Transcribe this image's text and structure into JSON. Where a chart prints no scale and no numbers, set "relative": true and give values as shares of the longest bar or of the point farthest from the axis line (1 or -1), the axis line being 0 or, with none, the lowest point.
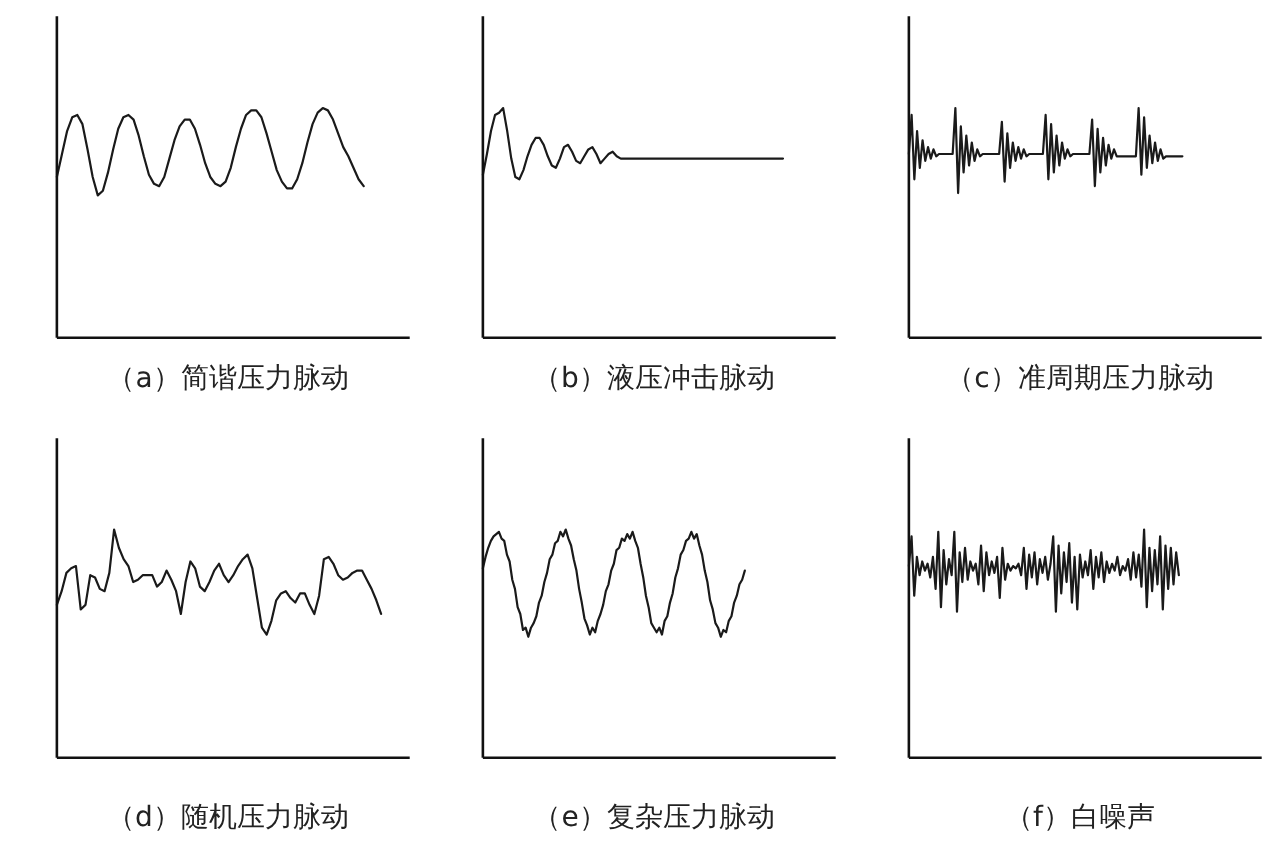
{
  "chart_data": [
    {
      "type": "line",
      "relative": true,
      "tick_labels": false,
      "title": "（a）简谐压力脉动",
      "categories": [
        null,
        null,
        null,
        null,
        null,
        null,
        null,
        null,
        null,
        null,
        null,
        null,
        null,
        null,
        null,
        null,
        null,
        null,
        null,
        null,
        null,
        null,
        null,
        null,
        null,
        null,
        null,
        null,
        null,
        null,
        null,
        null,
        null,
        null,
        null,
        null,
        null,
        null,
        null,
        null,
        null,
        null,
        null,
        null,
        null,
        null,
        null,
        null,
        null,
        null,
        null,
        null,
        null,
        null,
        null,
        null,
        null,
        null,
        null,
        null,
        null,
        null,
        null,
        null,
        null,
        null,
        null,
        null,
        null,
        null
      ],
      "series": [
        {
          "color": "#1a1a1a",
          "values": [
            0.7,
            0.8,
            0.9,
            0.96,
            0.97,
            0.93,
            0.82,
            0.7,
            0.62,
            0.64,
            0.72,
            0.82,
            0.91,
            0.96,
            0.97,
            0.95,
            0.88,
            0.79,
            0.71,
            0.67,
            0.66,
            0.7,
            0.78,
            0.86,
            0.92,
            0.95,
            0.95,
            0.91,
            0.84,
            0.76,
            0.7,
            0.67,
            0.66,
            0.68,
            0.74,
            0.83,
            0.91,
            0.97,
            0.99,
            0.99,
            0.96,
            0.89,
            0.81,
            0.73,
            0.68,
            0.65,
            0.65,
            0.69,
            0.76,
            0.85,
            0.93,
            0.98,
            1.0,
            0.99,
            0.95,
            0.89,
            0.83,
            0.79,
            0.74,
            0.69,
            0.66,
            null,
            null,
            null,
            null,
            null,
            null,
            null,
            null,
            null
          ]
        }
      ]
    },
    {
      "type": "line",
      "relative": true,
      "tick_labels": false,
      "title": "（b）液压冲击脉动",
      "categories": [
        null,
        null,
        null,
        null,
        null,
        null,
        null,
        null,
        null,
        null,
        null,
        null,
        null,
        null,
        null,
        null,
        null,
        null,
        null,
        null,
        null,
        null,
        null,
        null,
        null,
        null,
        null,
        null,
        null,
        null,
        null,
        null,
        null,
        null,
        null,
        null,
        null,
        null,
        null,
        null,
        null,
        null,
        null,
        null,
        null,
        null,
        null,
        null,
        null,
        null,
        null,
        null,
        null,
        null,
        null,
        null,
        null,
        null,
        null,
        null,
        null,
        null,
        null,
        null,
        null,
        null,
        null,
        null,
        null,
        null,
        null,
        null,
        null,
        null,
        null,
        null,
        null,
        null,
        null,
        null,
        null,
        null,
        null,
        null,
        null,
        null,
        null,
        null
      ],
      "series": [
        {
          "color": "#1a1a1a",
          "values": [
            0.71,
            0.8,
            0.9,
            0.97,
            0.98,
            1.0,
            0.9,
            0.78,
            0.7,
            0.69,
            0.73,
            0.79,
            0.84,
            0.87,
            0.87,
            0.84,
            0.79,
            0.75,
            0.74,
            0.78,
            0.83,
            0.84,
            0.81,
            0.77,
            0.76,
            0.79,
            0.82,
            0.83,
            0.8,
            0.76,
            0.78,
            0.8,
            0.81,
            0.79,
            0.78,
            0.78,
            0.78,
            0.78,
            0.78,
            0.78,
            0.78,
            0.78,
            0.78,
            0.78,
            0.78,
            0.78,
            0.78,
            0.78,
            0.78,
            0.78,
            0.78,
            0.78,
            0.78,
            0.78,
            0.78,
            0.78,
            0.78,
            0.78,
            0.78,
            0.78,
            0.78,
            0.78,
            0.78,
            0.78,
            0.78,
            0.78,
            0.78,
            0.78,
            0.78,
            0.78,
            0.78,
            0.78,
            0.78,
            0.78,
            0.78,
            null,
            null,
            null,
            null,
            null,
            null,
            null,
            null,
            null,
            null,
            null,
            null,
            null
          ]
        }
      ]
    },
    {
      "type": "line",
      "relative": true,
      "tick_labels": false,
      "title": "（c）准周期压力脉动",
      "categories": [
        null,
        null,
        null,
        null,
        null,
        null,
        null,
        null,
        null,
        null,
        null,
        null,
        null,
        null,
        null,
        null,
        null,
        null,
        null,
        null,
        null,
        null,
        null,
        null,
        null,
        null,
        null,
        null,
        null,
        null,
        null,
        null,
        null,
        null,
        null,
        null,
        null,
        null,
        null,
        null,
        null,
        null,
        null,
        null,
        null,
        null,
        null,
        null,
        null,
        null,
        null,
        null,
        null,
        null,
        null,
        null,
        null,
        null,
        null,
        null,
        null,
        null,
        null,
        null,
        null,
        null,
        null,
        null,
        null,
        null,
        null,
        null,
        null,
        null,
        null,
        null,
        null,
        null,
        null,
        null,
        null,
        null,
        null,
        null,
        null,
        null,
        null,
        null,
        null,
        null,
        null,
        null,
        null,
        null,
        null,
        null,
        null,
        null,
        null,
        null,
        null,
        null,
        null,
        null,
        null,
        null,
        null,
        null,
        null,
        null,
        null,
        null,
        null,
        null,
        null,
        null,
        null,
        null,
        null,
        null,
        null,
        null,
        null,
        null,
        null,
        null,
        null,
        null,
        null,
        null
      ],
      "series": [
        {
          "color": "#1a1a1a",
          "values": [
            0.8,
            0.97,
            0.69,
            0.9,
            0.74,
            0.86,
            0.77,
            0.83,
            0.78,
            0.82,
            0.79,
            0.8,
            0.8,
            0.8,
            0.8,
            0.8,
            0.8,
            1.0,
            0.63,
            0.92,
            0.72,
            0.88,
            0.75,
            0.85,
            0.77,
            0.82,
            0.79,
            0.8,
            0.8,
            0.8,
            0.8,
            0.8,
            0.8,
            0.8,
            0.94,
            0.68,
            0.89,
            0.74,
            0.85,
            0.77,
            0.83,
            0.78,
            0.82,
            0.79,
            0.8,
            0.8,
            0.8,
            0.8,
            0.8,
            0.8,
            0.97,
            0.69,
            0.93,
            0.72,
            0.88,
            0.75,
            0.85,
            0.78,
            0.82,
            0.79,
            0.8,
            0.8,
            0.8,
            0.8,
            0.8,
            0.8,
            0.8,
            0.95,
            0.66,
            0.91,
            0.72,
            0.87,
            0.75,
            0.84,
            0.78,
            0.82,
            0.79,
            0.79,
            0.79,
            0.79,
            0.79,
            0.79,
            0.79,
            0.79,
            1.0,
            0.71,
            0.96,
            0.74,
            0.88,
            0.76,
            0.85,
            0.77,
            0.82,
            0.78,
            0.79,
            0.79,
            0.79,
            0.79,
            0.79,
            0.79,
            0.79,
            null,
            null,
            null,
            null,
            null,
            null,
            null,
            null,
            null,
            null,
            null,
            null,
            null,
            null,
            null,
            null,
            null,
            null,
            null,
            null,
            null,
            null,
            null,
            null,
            null,
            null,
            null,
            null,
            null
          ]
        }
      ]
    },
    {
      "type": "line",
      "relative": true,
      "tick_labels": false,
      "title": "（d）随机压力脉动",
      "categories": [
        null,
        null,
        null,
        null,
        null,
        null,
        null,
        null,
        null,
        null,
        null,
        null,
        null,
        null,
        null,
        null,
        null,
        null,
        null,
        null,
        null,
        null,
        null,
        null,
        null,
        null,
        null,
        null,
        null,
        null,
        null,
        null,
        null,
        null,
        null,
        null,
        null,
        null,
        null,
        null,
        null,
        null,
        null,
        null,
        null,
        null,
        null,
        null,
        null,
        null,
        null,
        null,
        null,
        null,
        null,
        null,
        null,
        null,
        null,
        null,
        null,
        null,
        null,
        null,
        null,
        null,
        null,
        null,
        null,
        null,
        null,
        null,
        null,
        null,
        null
      ],
      "series": [
        {
          "color": "#1a1a1a",
          "values": [
            0.67,
            0.73,
            0.81,
            0.83,
            0.84,
            0.65,
            0.67,
            0.8,
            0.79,
            0.74,
            0.73,
            0.81,
            1.0,
            0.92,
            0.87,
            0.84,
            0.77,
            0.78,
            0.8,
            0.8,
            0.8,
            0.75,
            0.77,
            0.82,
            0.78,
            0.73,
            0.63,
            0.77,
            0.86,
            0.83,
            0.75,
            0.73,
            0.77,
            0.82,
            0.85,
            0.8,
            0.77,
            0.8,
            0.84,
            0.87,
            0.89,
            0.83,
            0.7,
            0.57,
            0.54,
            0.6,
            0.69,
            0.72,
            0.73,
            0.7,
            0.68,
            0.72,
            0.72,
            0.67,
            0.63,
            0.71,
            0.87,
            0.88,
            0.85,
            0.8,
            0.78,
            0.79,
            0.81,
            0.82,
            0.82,
            0.78,
            0.74,
            0.69,
            0.63,
            null,
            null,
            null,
            null,
            null,
            null
          ]
        }
      ]
    },
    {
      "type": "line",
      "relative": true,
      "tick_labels": false,
      "title": "（e）复杂压力脉动",
      "categories": [
        null,
        null,
        null,
        null,
        null,
        null,
        null,
        null,
        null,
        null,
        null,
        null,
        null,
        null,
        null,
        null,
        null,
        null,
        null,
        null,
        null,
        null,
        null,
        null,
        null,
        null,
        null,
        null,
        null,
        null,
        null,
        null,
        null,
        null,
        null,
        null,
        null,
        null,
        null,
        null,
        null,
        null,
        null,
        null,
        null,
        null,
        null,
        null,
        null,
        null,
        null,
        null,
        null,
        null,
        null,
        null,
        null,
        null,
        null,
        null,
        null,
        null,
        null,
        null,
        null,
        null,
        null,
        null,
        null,
        null,
        null,
        null,
        null,
        null,
        null,
        null,
        null,
        null,
        null,
        null,
        null,
        null,
        null,
        null,
        null,
        null,
        null,
        null,
        null,
        null,
        null,
        null,
        null,
        null,
        null,
        null,
        null,
        null,
        null,
        null,
        null,
        null,
        null,
        null,
        null,
        null,
        null,
        null,
        null,
        null,
        null,
        null,
        null,
        null,
        null,
        null,
        null,
        null,
        null,
        null,
        null,
        null,
        null,
        null,
        null,
        null,
        null,
        null,
        null,
        null,
        null,
        null,
        null
      ],
      "series": [
        {
          "color": "#1a1a1a",
          "values": [
            0.83,
            0.88,
            0.92,
            0.95,
            0.97,
            0.98,
            0.99,
            0.96,
            0.95,
            0.89,
            0.86,
            0.78,
            0.74,
            0.66,
            0.63,
            0.56,
            0.57,
            0.53,
            0.57,
            0.59,
            0.62,
            0.68,
            0.71,
            0.77,
            0.81,
            0.87,
            0.89,
            0.94,
            0.95,
            0.99,
            0.97,
            1.0,
            0.96,
            0.93,
            0.87,
            0.82,
            0.74,
            0.68,
            0.61,
            0.58,
            0.54,
            0.57,
            0.55,
            0.6,
            0.63,
            0.67,
            0.73,
            0.76,
            0.82,
            0.85,
            0.91,
            0.92,
            0.96,
            0.95,
            0.98,
            0.96,
            0.99,
            0.95,
            0.92,
            0.85,
            0.79,
            0.71,
            0.66,
            0.59,
            0.57,
            0.55,
            0.57,
            0.54,
            0.6,
            0.62,
            0.68,
            0.72,
            0.79,
            0.83,
            0.89,
            0.91,
            0.95,
            0.96,
            0.99,
            0.96,
            0.98,
            0.93,
            0.89,
            0.82,
            0.77,
            0.69,
            0.65,
            0.59,
            0.57,
            0.53,
            0.56,
            0.55,
            0.6,
            0.62,
            0.68,
            0.71,
            0.76,
            0.78,
            0.82,
            null,
            null,
            null,
            null,
            null,
            null,
            null,
            null,
            null,
            null,
            null,
            null,
            null,
            null,
            null,
            null,
            null,
            null,
            null,
            null,
            null,
            null,
            null,
            null,
            null,
            null,
            null,
            null,
            null,
            null,
            null,
            null,
            null,
            null
          ]
        }
      ]
    },
    {
      "type": "line",
      "relative": true,
      "tick_labels": false,
      "title": "（f）白噪声",
      "categories": [
        null,
        null,
        null,
        null,
        null,
        null,
        null,
        null,
        null,
        null,
        null,
        null,
        null,
        null,
        null,
        null,
        null,
        null,
        null,
        null,
        null,
        null,
        null,
        null,
        null,
        null,
        null,
        null,
        null,
        null,
        null,
        null,
        null,
        null,
        null,
        null,
        null,
        null,
        null,
        null,
        null,
        null,
        null,
        null,
        null,
        null,
        null,
        null,
        null,
        null,
        null,
        null,
        null,
        null,
        null,
        null,
        null,
        null,
        null,
        null,
        null,
        null,
        null,
        null,
        null,
        null,
        null,
        null,
        null,
        null,
        null,
        null,
        null,
        null,
        null,
        null,
        null,
        null,
        null,
        null,
        null,
        null,
        null,
        null,
        null,
        null,
        null,
        null,
        null,
        null,
        null,
        null,
        null,
        null,
        null,
        null,
        null,
        null,
        null,
        null,
        null,
        null,
        null,
        null,
        null,
        null,
        null,
        null,
        null,
        null,
        null,
        null,
        null,
        null,
        null,
        null,
        null,
        null,
        null,
        null,
        null,
        null,
        null,
        null,
        null,
        null,
        null,
        null,
        null,
        null,
        null,
        null,
        null
      ],
      "series": [
        {
          "color": "#1a1a1a",
          "values": [
            0.84,
            0.97,
            0.71,
            0.88,
            0.8,
            0.86,
            0.82,
            0.85,
            0.79,
            0.88,
            0.74,
            0.99,
            0.66,
            0.91,
            0.76,
            0.87,
            0.8,
            0.99,
            0.64,
            0.9,
            0.77,
            0.92,
            0.78,
            0.86,
            0.82,
            0.85,
            0.76,
            0.93,
            0.73,
            0.9,
            0.8,
            0.86,
            0.81,
            0.88,
            0.7,
            0.92,
            0.78,
            0.85,
            0.82,
            0.84,
            0.83,
            0.85,
            0.8,
            0.92,
            0.74,
            0.89,
            0.79,
            0.9,
            0.76,
            0.87,
            0.81,
            0.88,
            0.78,
            0.85,
            0.97,
            0.64,
            0.93,
            0.72,
            0.9,
            0.77,
            0.94,
            0.68,
            0.88,
            0.65,
            0.89,
            0.79,
            0.86,
            0.8,
            0.91,
            0.74,
            0.88,
            0.79,
            0.9,
            0.77,
            0.86,
            0.81,
            0.85,
            0.82,
            0.88,
            0.8,
            0.84,
            0.82,
            0.87,
            0.78,
            0.9,
            0.79,
            0.89,
            0.75,
            1.0,
            0.66,
            0.92,
            0.73,
            0.91,
            0.76,
            0.97,
            0.65,
            0.93,
            0.74,
            0.92,
            0.76,
            0.9,
            0.8,
            null,
            null,
            null,
            null,
            null,
            null,
            null,
            null,
            null,
            null,
            null,
            null,
            null,
            null,
            null,
            null,
            null,
            null,
            null,
            null,
            null,
            null,
            null,
            null,
            null,
            null,
            null,
            null,
            null,
            null,
            null
          ]
        }
      ]
    }
  ]
}
